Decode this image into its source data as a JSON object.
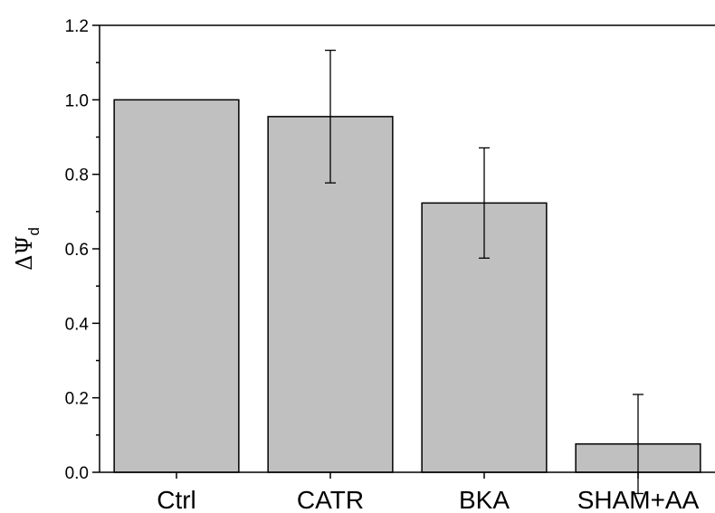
{
  "chart_data": {
    "type": "bar",
    "categories": [
      "Ctrl",
      "CATR",
      "BKA",
      "SHAM+AA"
    ],
    "values": [
      1.0,
      0.955,
      0.723,
      0.076
    ],
    "errors": [
      0.0,
      0.178,
      0.148,
      0.133
    ],
    "ylabel": {
      "symbol": "ΔΨ",
      "subscript": "d"
    },
    "ylim": [
      0.0,
      1.2
    ],
    "yticks": [
      "0.0",
      "0.2",
      "0.4",
      "0.6",
      "0.8",
      "1.0",
      "1.2"
    ],
    "grid": false,
    "bar_color": "#c0c0c0",
    "edge_color": "#000000"
  }
}
